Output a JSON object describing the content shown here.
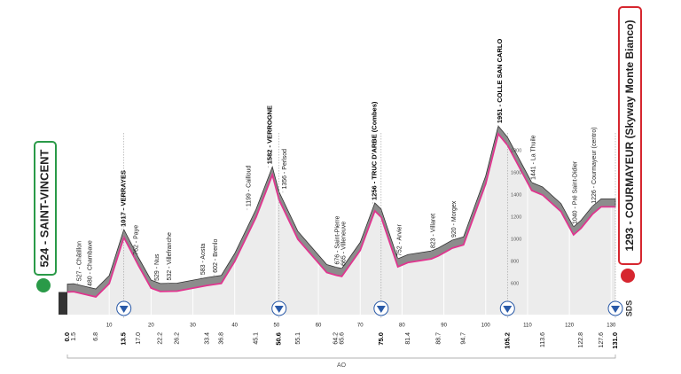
{
  "chart_data": {
    "type": "elevation-profile",
    "start_label": "524 - SAINT-VINCENT",
    "finish_label": "1293 - COURMAYEUR (Skyway Monte Bianco)",
    "x": [
      0.0,
      1.5,
      6.8,
      10,
      13.5,
      17.0,
      20,
      22.2,
      26.2,
      33.4,
      36.8,
      40,
      45.1,
      49,
      50.6,
      55.1,
      62,
      64.2,
      65.6,
      70,
      73.5,
      75.0,
      79,
      81.4,
      87,
      88.7,
      92,
      94.7,
      100,
      103,
      105.2,
      111,
      113.6,
      118,
      121,
      122.8,
      125.5,
      127.6,
      131.0
    ],
    "values": [
      524,
      527,
      480,
      600,
      1017,
      762,
      560,
      529,
      532,
      583,
      602,
      800,
      1199,
      1582,
      1356,
      1000,
      700,
      676,
      665,
      900,
      1256,
      1200,
      752,
      790,
      823,
      850,
      920,
      950,
      1500,
      1951,
      1850,
      1441,
      1400,
      1250,
      1040,
      1100,
      1226,
      1293,
      1293
    ],
    "line_color": "#e0358f",
    "ribbon_color": "#8c8c8c",
    "area_color": "#ececec",
    "xlim": [
      0,
      131
    ],
    "ylim": [
      320,
      2000
    ],
    "xticks": [
      10,
      20,
      30,
      40,
      50,
      60,
      70,
      80,
      90,
      100,
      110,
      120,
      130
    ],
    "yticks": [
      600,
      800,
      1000,
      1200,
      1400,
      1600,
      1800
    ],
    "ytick_km": 106,
    "km_labels": [
      {
        "value": 0.0,
        "label": "0.0",
        "marker": false
      },
      {
        "value": 1.5,
        "label": "1.5"
      },
      {
        "value": 6.8,
        "label": "6.8"
      },
      {
        "value": 13.5,
        "label": "13.5",
        "marker": true
      },
      {
        "value": 17.0,
        "label": "17.0"
      },
      {
        "value": 22.2,
        "label": "22.2"
      },
      {
        "value": 26.2,
        "label": "26.2"
      },
      {
        "value": 33.4,
        "label": "33.4"
      },
      {
        "value": 36.8,
        "label": "36.8"
      },
      {
        "value": 45.1,
        "label": "45.1"
      },
      {
        "value": 50.6,
        "label": "50.6",
        "marker": true
      },
      {
        "value": 55.1,
        "label": "55.1"
      },
      {
        "value": 64.2,
        "label": "64.2"
      },
      {
        "value": 65.6,
        "label": "65.6"
      },
      {
        "value": 75.0,
        "label": "75.0",
        "marker": true
      },
      {
        "value": 81.4,
        "label": "81.4"
      },
      {
        "value": 88.7,
        "label": "88.7"
      },
      {
        "value": 94.7,
        "label": "94.7"
      },
      {
        "value": 105.2,
        "label": "105.2",
        "marker": true
      },
      {
        "value": 113.6,
        "label": "113.6"
      },
      {
        "value": 122.8,
        "label": "122.8"
      },
      {
        "value": 127.6,
        "label": "127.6"
      },
      {
        "value": 131.0,
        "label": "131.0",
        "marker": true
      }
    ],
    "waypoints": [
      {
        "km": 2.5,
        "altitude": 527,
        "label": "527 - Châtillon"
      },
      {
        "km": 5,
        "altitude": 480,
        "label": "480 - Chambave"
      },
      {
        "km": 13,
        "altitude": 1017,
        "label": "1017 - VERRAYES",
        "emphasis": true
      },
      {
        "km": 16,
        "altitude": 762,
        "label": "762 - Paye"
      },
      {
        "km": 21,
        "altitude": 529,
        "label": "529 - Nus"
      },
      {
        "km": 24,
        "altitude": 532,
        "label": "532 - Villefranche"
      },
      {
        "km": 32,
        "altitude": 583,
        "label": "583 - Aosta"
      },
      {
        "km": 35,
        "altitude": 602,
        "label": "602 - Brenlo"
      },
      {
        "km": 43,
        "altitude": 1199,
        "label": "1199 - Cailloud"
      },
      {
        "km": 48,
        "altitude": 1582,
        "label": "1582 - VERROGNE",
        "emphasis": true
      },
      {
        "km": 51.5,
        "altitude": 1356,
        "label": "1356 - Perlsod"
      },
      {
        "km": 64.2,
        "altitude": 676,
        "label": "676 - Saint-Pierre"
      },
      {
        "km": 65.6,
        "altitude": 665,
        "label": "665 - Villeneuve"
      },
      {
        "km": 73,
        "altitude": 1256,
        "label": "1256 - TRUC D'ARBE (Combes)",
        "emphasis": true
      },
      {
        "km": 79,
        "altitude": 752,
        "label": "752 - Arvier"
      },
      {
        "km": 87,
        "altitude": 823,
        "label": "823 - Villaret"
      },
      {
        "km": 92,
        "altitude": 920,
        "label": "920 - Morgex"
      },
      {
        "km": 103,
        "altitude": 1951,
        "label": "1951 - COLLE SAN CARLO",
        "emphasis": true
      },
      {
        "km": 111,
        "altitude": 1441,
        "label": "1441 - La Thuile"
      },
      {
        "km": 121,
        "altitude": 1040,
        "label": "1040 - Pré Saint-Didier"
      },
      {
        "km": 125.5,
        "altitude": 1226,
        "label": "1226 - Courmayeur (centro)"
      }
    ],
    "region_label": "AO",
    "logo": "SDS"
  }
}
